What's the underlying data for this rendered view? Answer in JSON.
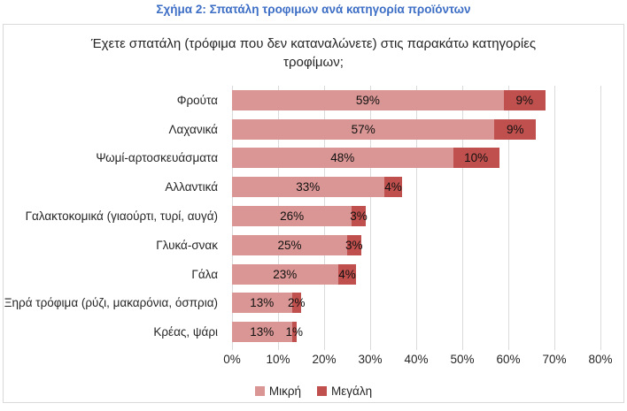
{
  "figure_title": "Σχήμα 2: Σπατάλη τροφιμων ανά κατηγορία προϊόντων",
  "colors": {
    "figure_title_blue": "#3d6ec5",
    "series_small": "#d99694",
    "series_large": "#c0504d",
    "gridline": "#dadada",
    "chart_border": "#d9d9d9"
  },
  "chart_data": {
    "type": "bar",
    "orientation": "horizontal",
    "stacked": true,
    "title": "Έχετε σπατάλη (τρόφιμα που δεν καταναλώνετε) στις παρακάτω κατηγορίες τροφίμων;",
    "categories": [
      "Φρούτα",
      "Λαχανικά",
      "Ψωμί-αρτοσκευάσματα",
      "Αλλαντικά",
      "Γαλακτοκομικά (γιαούρτι, τυρί, αυγά)",
      "Γλυκά-σνακ",
      "Γάλα",
      "Ξηρά τρόφιμα (ρύζι, μακαρόνια, όσπρια)",
      "Κρέας, ψάρι"
    ],
    "series": [
      {
        "name": "Μικρή",
        "color": "#d99694",
        "values": [
          59,
          57,
          48,
          33,
          26,
          25,
          23,
          13,
          13
        ]
      },
      {
        "name": "Μεγάλη",
        "color": "#c0504d",
        "values": [
          9,
          9,
          10,
          4,
          3,
          3,
          4,
          2,
          1
        ]
      }
    ],
    "data_label_format": "{v}%",
    "x_ticks": [
      "0%",
      "10%",
      "20%",
      "30%",
      "40%",
      "50%",
      "60%",
      "70%",
      "80%"
    ],
    "xlim": [
      0,
      80
    ],
    "grid": "vertical",
    "legend_position": "bottom"
  }
}
